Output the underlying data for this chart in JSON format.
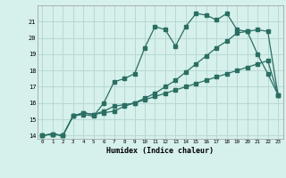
{
  "title": "",
  "xlabel": "Humidex (Indice chaleur)",
  "bg_color": "#d6f0ec",
  "grid_color": "#b8d8d4",
  "line_color": "#2a6e62",
  "xmin": 0,
  "xmax": 23,
  "ymin": 13.8,
  "ymax": 22.0,
  "yticks": [
    14,
    15,
    16,
    17,
    18,
    19,
    20,
    21
  ],
  "xticks": [
    0,
    1,
    2,
    3,
    4,
    5,
    6,
    7,
    8,
    9,
    10,
    11,
    12,
    13,
    14,
    15,
    16,
    17,
    18,
    19,
    20,
    21,
    22,
    23
  ],
  "line1_x": [
    0,
    1,
    2,
    3,
    4,
    5,
    6,
    7,
    8,
    9,
    10,
    11,
    12,
    13,
    14,
    15,
    16,
    17,
    18,
    19,
    20,
    21,
    22,
    23
  ],
  "line1_y": [
    14.0,
    14.1,
    14.0,
    15.2,
    15.3,
    15.2,
    16.0,
    17.3,
    17.5,
    17.8,
    19.4,
    20.7,
    20.5,
    19.5,
    20.7,
    21.5,
    21.4,
    21.1,
    21.5,
    20.5,
    20.4,
    19.0,
    17.8,
    16.5
  ],
  "line2_x": [
    0,
    1,
    2,
    3,
    4,
    5,
    6,
    7,
    8,
    9,
    10,
    11,
    12,
    13,
    14,
    15,
    16,
    17,
    18,
    19,
    20,
    21,
    22,
    23
  ],
  "line2_y": [
    14.0,
    14.1,
    14.0,
    15.2,
    15.4,
    15.3,
    15.4,
    15.5,
    15.8,
    16.0,
    16.3,
    16.6,
    17.0,
    17.4,
    17.9,
    18.4,
    18.9,
    19.4,
    19.8,
    20.3,
    20.4,
    20.5,
    20.4,
    16.5
  ],
  "line3_x": [
    0,
    1,
    2,
    3,
    4,
    5,
    6,
    7,
    8,
    9,
    10,
    11,
    12,
    13,
    14,
    15,
    16,
    17,
    18,
    19,
    20,
    21,
    22,
    23
  ],
  "line3_y": [
    14.0,
    14.1,
    14.0,
    15.2,
    15.4,
    15.3,
    15.5,
    15.8,
    15.9,
    16.0,
    16.2,
    16.4,
    16.6,
    16.8,
    17.0,
    17.2,
    17.4,
    17.6,
    17.8,
    18.0,
    18.2,
    18.4,
    18.6,
    16.5
  ]
}
